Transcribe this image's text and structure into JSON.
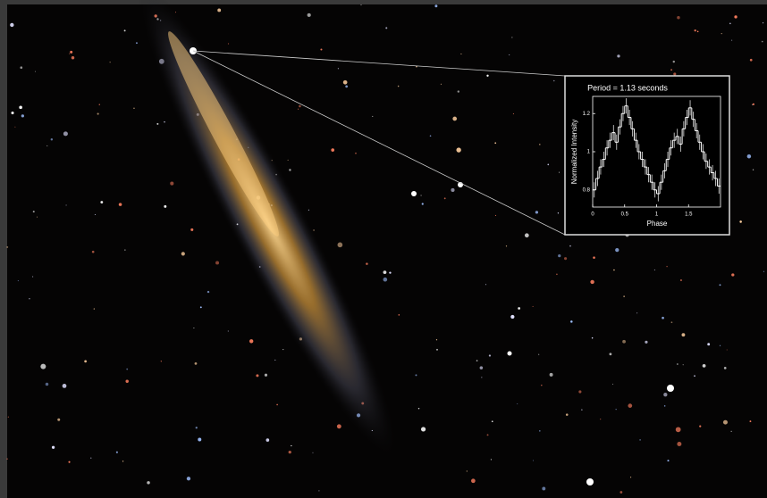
{
  "chart_data": {
    "type": "step",
    "title": "Period = 1.13 seconds",
    "xlabel": "Phase",
    "ylabel": "Normalized Intensity",
    "color": "#ffffff",
    "xlim": [
      0,
      2
    ],
    "xticks": [
      0,
      0.5,
      1,
      1.5
    ],
    "ylim": [
      0.71,
      1.29
    ],
    "yticks": [
      0.8,
      1,
      1.2
    ],
    "x": [
      0.025,
      0.075,
      0.125,
      0.175,
      0.225,
      0.275,
      0.325,
      0.375,
      0.425,
      0.475,
      0.525,
      0.575,
      0.625,
      0.675,
      0.725,
      0.775,
      0.825,
      0.875,
      0.925,
      0.975,
      1.025,
      1.075,
      1.125,
      1.175,
      1.225,
      1.275,
      1.325,
      1.375,
      1.425,
      1.475,
      1.525,
      1.575,
      1.625,
      1.675,
      1.725,
      1.775,
      1.825,
      1.875,
      1.925,
      1.975
    ],
    "values": [
      0.8,
      0.86,
      0.92,
      0.96,
      1.02,
      1.06,
      1.1,
      1.05,
      1.13,
      1.2,
      1.24,
      1.18,
      1.12,
      1.06,
      1.0,
      0.96,
      0.92,
      0.88,
      0.84,
      0.8,
      0.78,
      0.84,
      0.9,
      0.96,
      1.02,
      1.06,
      1.08,
      1.04,
      1.12,
      1.18,
      1.23,
      1.17,
      1.11,
      1.05,
      1.0,
      0.95,
      0.92,
      0.89,
      0.86,
      0.82
    ],
    "errors": [
      0.04,
      0.04,
      0.04,
      0.04,
      0.04,
      0.04,
      0.04,
      0.04,
      0.04,
      0.04,
      0.04,
      0.04,
      0.04,
      0.04,
      0.04,
      0.04,
      0.04,
      0.04,
      0.04,
      0.04,
      0.04,
      0.04,
      0.04,
      0.04,
      0.04,
      0.04,
      0.04,
      0.04,
      0.04,
      0.04,
      0.04,
      0.04,
      0.04,
      0.04,
      0.04,
      0.04,
      0.04,
      0.04,
      0.04,
      0.04
    ]
  }
}
